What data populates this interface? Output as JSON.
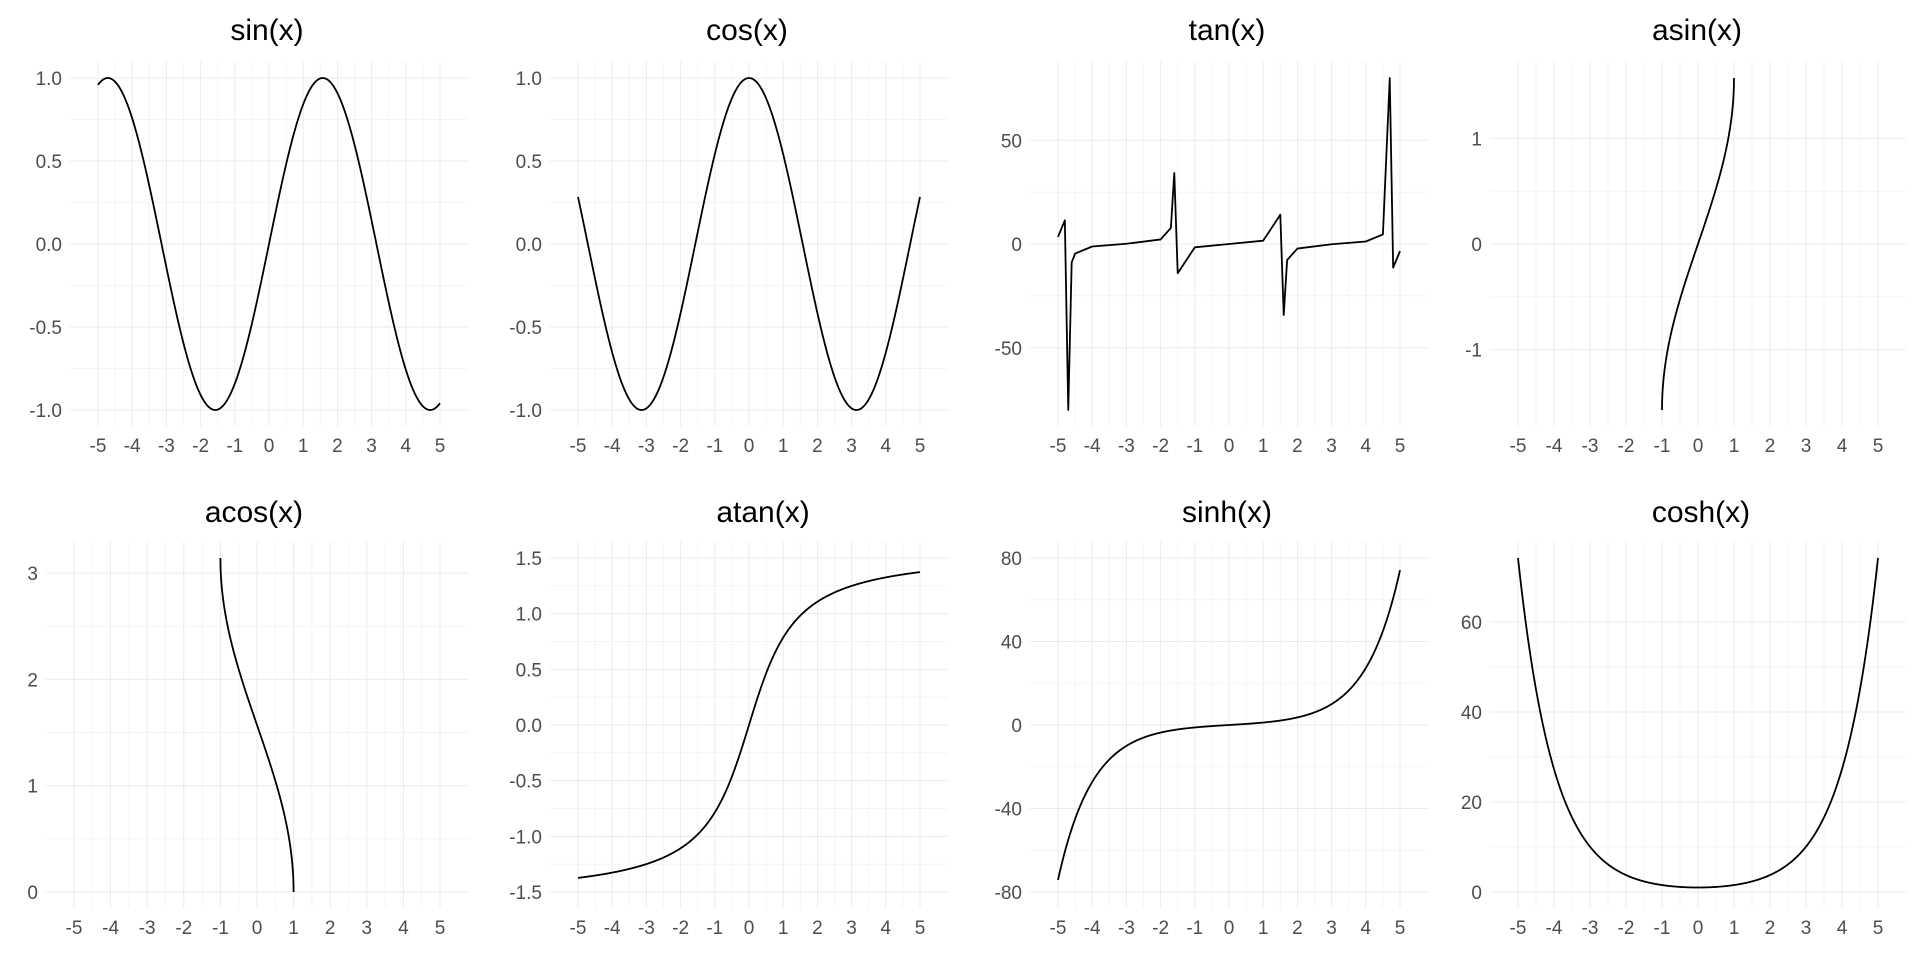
{
  "chart_data": [
    {
      "type": "line",
      "title": "sin(x)",
      "fn": "sin",
      "xlim": [
        -5,
        5
      ],
      "xticks": [
        -5,
        -4,
        -3,
        -2,
        -1,
        0,
        1,
        2,
        3,
        4,
        5
      ],
      "ylim": [
        -1,
        1
      ],
      "yticks": [
        -1.0,
        -0.5,
        0.0,
        0.5,
        1.0
      ],
      "ytick_labels": [
        "-1.0",
        "-0.5",
        "0.0",
        "0.5",
        "1.0"
      ],
      "x": [
        -5,
        -4.5,
        -4,
        -3.5,
        -3,
        -2.5,
        -2,
        -1.5,
        -1,
        -0.5,
        0,
        0.5,
        1,
        1.5,
        2,
        2.5,
        3,
        3.5,
        4,
        4.5,
        5
      ],
      "y": [
        0.959,
        0.978,
        0.757,
        0.351,
        -0.141,
        -0.598,
        -0.909,
        -0.997,
        -0.841,
        -0.479,
        0,
        0.479,
        0.841,
        0.997,
        0.909,
        0.598,
        0.141,
        -0.351,
        -0.757,
        -0.978,
        -0.959
      ]
    },
    {
      "type": "line",
      "title": "cos(x)",
      "fn": "cos",
      "xlim": [
        -5,
        5
      ],
      "xticks": [
        -5,
        -4,
        -3,
        -2,
        -1,
        0,
        1,
        2,
        3,
        4,
        5
      ],
      "ylim": [
        -1,
        1
      ],
      "yticks": [
        -1.0,
        -0.5,
        0.0,
        0.5,
        1.0
      ],
      "ytick_labels": [
        "-1.0",
        "-0.5",
        "0.0",
        "0.5",
        "1.0"
      ],
      "x": [
        -5,
        -4.5,
        -4,
        -3.5,
        -3,
        -2.5,
        -2,
        -1.5,
        -1,
        -0.5,
        0,
        0.5,
        1,
        1.5,
        2,
        2.5,
        3,
        3.5,
        4,
        4.5,
        5
      ],
      "y": [
        0.284,
        -0.211,
        -0.654,
        -0.936,
        -0.99,
        -0.801,
        -0.416,
        0.071,
        0.54,
        0.878,
        1,
        0.878,
        0.54,
        0.071,
        -0.416,
        -0.801,
        -0.99,
        -0.936,
        -0.654,
        -0.211,
        0.284
      ]
    },
    {
      "type": "line",
      "title": "tan(x)",
      "fn": "tan",
      "xlim": [
        -5,
        5
      ],
      "xticks": [
        -5,
        -4,
        -3,
        -2,
        -1,
        0,
        1,
        2,
        3,
        4,
        5
      ],
      "ylim": [
        -80,
        80
      ],
      "yticks": [
        -50,
        0,
        50
      ],
      "ytick_labels": [
        "-50",
        "0",
        "50"
      ],
      "x": [
        -5,
        -4.8,
        -4.7,
        -4.6,
        -4.5,
        -4,
        -3,
        -2,
        -1.7,
        -1.6,
        -1.5,
        -1,
        0,
        1,
        1.5,
        1.6,
        1.7,
        2,
        3,
        4,
        4.5,
        4.7,
        4.8,
        5
      ],
      "y": [
        3.4,
        11.4,
        -80.7,
        -8.9,
        -4.6,
        -1.2,
        0.1,
        2.2,
        7.7,
        34.2,
        -14.1,
        -1.6,
        0,
        1.6,
        14.1,
        -34.2,
        -7.7,
        -2.2,
        -0.1,
        1.2,
        4.6,
        80.7,
        -11.4,
        -3.4
      ]
    },
    {
      "type": "line",
      "title": "asin(x)",
      "fn": "asin",
      "xlim": [
        -5,
        5
      ],
      "xticks": [
        -5,
        -4,
        -3,
        -2,
        -1,
        0,
        1,
        2,
        3,
        4,
        5
      ],
      "ylim": [
        -1.571,
        1.571
      ],
      "yticks": [
        -1,
        0,
        1
      ],
      "ytick_labels": [
        "-1",
        "0",
        "1"
      ],
      "x": [
        -1,
        -0.9,
        -0.75,
        -0.5,
        -0.25,
        0,
        0.25,
        0.5,
        0.75,
        0.9,
        1
      ],
      "y": [
        -1.571,
        -1.12,
        -0.848,
        -0.524,
        -0.253,
        0,
        0.253,
        0.524,
        0.848,
        1.12,
        1.571
      ]
    },
    {
      "type": "line",
      "title": "acos(x)",
      "fn": "acos",
      "xlim": [
        -5,
        5
      ],
      "xticks": [
        -5,
        -4,
        -3,
        -2,
        -1,
        0,
        1,
        2,
        3,
        4,
        5
      ],
      "ylim": [
        0,
        3.142
      ],
      "yticks": [
        0,
        1,
        2,
        3
      ],
      "ytick_labels": [
        "0",
        "1",
        "2",
        "3"
      ],
      "x": [
        -1,
        -0.9,
        -0.75,
        -0.5,
        -0.25,
        0,
        0.25,
        0.5,
        0.75,
        0.9,
        1
      ],
      "y": [
        3.142,
        2.691,
        2.419,
        2.094,
        1.823,
        1.571,
        1.318,
        1.047,
        0.723,
        0.451,
        0
      ]
    },
    {
      "type": "line",
      "title": "atan(x)",
      "fn": "atan",
      "xlim": [
        -5,
        5
      ],
      "xticks": [
        -5,
        -4,
        -3,
        -2,
        -1,
        0,
        1,
        2,
        3,
        4,
        5
      ],
      "ylim": [
        -1.5,
        1.5
      ],
      "yticks": [
        -1.5,
        -1.0,
        -0.5,
        0.0,
        0.5,
        1.0,
        1.5
      ],
      "ytick_labels": [
        "-1.5",
        "-1.0",
        "-0.5",
        "0.0",
        "0.5",
        "1.0",
        "1.5"
      ],
      "x": [
        -5,
        -4,
        -3,
        -2,
        -1.5,
        -1,
        -0.5,
        0,
        0.5,
        1,
        1.5,
        2,
        3,
        4,
        5
      ],
      "y": [
        -1.373,
        -1.326,
        -1.249,
        -1.107,
        -0.983,
        -0.785,
        -0.464,
        0,
        0.464,
        0.785,
        0.983,
        1.107,
        1.249,
        1.326,
        1.373
      ]
    },
    {
      "type": "line",
      "title": "sinh(x)",
      "fn": "sinh",
      "xlim": [
        -5,
        5
      ],
      "xticks": [
        -5,
        -4,
        -3,
        -2,
        -1,
        0,
        1,
        2,
        3,
        4,
        5
      ],
      "ylim": [
        -80,
        80
      ],
      "yticks": [
        -80,
        -40,
        0,
        40,
        80
      ],
      "ytick_labels": [
        "-80",
        "-40",
        "0",
        "40",
        "80"
      ],
      "x": [
        -5,
        -4.5,
        -4,
        -3.5,
        -3,
        -2,
        -1,
        0,
        1,
        2,
        3,
        3.5,
        4,
        4.5,
        5
      ],
      "y": [
        -74.2,
        -45.0,
        -27.3,
        -16.5,
        -10.0,
        -3.6,
        -1.2,
        0,
        1.2,
        3.6,
        10.0,
        16.5,
        27.3,
        45.0,
        74.2
      ]
    },
    {
      "type": "line",
      "title": "cosh(x)",
      "fn": "cosh",
      "xlim": [
        -5,
        5
      ],
      "xticks": [
        -5,
        -4,
        -3,
        -2,
        -1,
        0,
        1,
        2,
        3,
        4,
        5
      ],
      "ylim": [
        0,
        74.2
      ],
      "yticks": [
        0,
        20,
        40,
        60
      ],
      "ytick_labels": [
        "0",
        "20",
        "40",
        "60"
      ],
      "x": [
        -5,
        -4.5,
        -4,
        -3.5,
        -3,
        -2,
        -1,
        0,
        1,
        2,
        3,
        3.5,
        4,
        4.5,
        5
      ],
      "y": [
        74.2,
        45.0,
        27.3,
        16.6,
        10.1,
        3.8,
        1.5,
        1,
        1.5,
        3.8,
        10.1,
        16.6,
        27.3,
        45.0,
        74.2
      ]
    }
  ]
}
